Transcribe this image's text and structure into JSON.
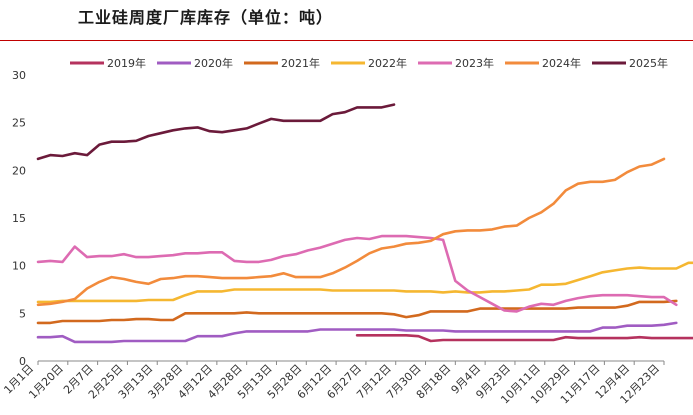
{
  "title": "工业硅周度厂库库存（单位：吨）",
  "chart_data": {
    "type": "line",
    "title": "工业硅周度厂库库存（单位：吨）",
    "ylabel": "",
    "xlabel": "",
    "ylim": [
      0,
      30
    ],
    "yticks": [
      0,
      5,
      10,
      15,
      20,
      25,
      30
    ],
    "grid": false,
    "legend": "top",
    "weeks": 52,
    "x_tick_labels": [
      "1月1日",
      "1月20日",
      "2月7日",
      "2月25日",
      "3月13日",
      "3月28日",
      "4月12日",
      "4月28日",
      "5月13日",
      "5月28日",
      "6月12日",
      "6月27日",
      "7月12日",
      "7月30日",
      "8月18日",
      "9月4日",
      "9月23日",
      "10月11日",
      "10月29日",
      "11月17日",
      "12月4日",
      "12月23日"
    ],
    "series": [
      {
        "name": "2019年",
        "color": "#b5325e",
        "start": 26,
        "values": [
          2.7,
          2.7,
          2.7,
          2.7,
          2.7,
          2.6,
          2.1,
          2.2,
          2.2,
          2.2,
          2.2,
          2.2,
          2.2,
          2.2,
          2.2,
          2.2,
          2.2,
          2.5,
          2.4,
          2.4,
          2.4,
          2.4,
          2.4,
          2.5,
          2.4,
          2.4,
          2.4,
          2.4,
          2.4,
          2.4
        ]
      },
      {
        "name": "2020年",
        "color": "#a05cc2",
        "start": 0,
        "values": [
          2.5,
          2.5,
          2.6,
          2.0,
          2.0,
          2.0,
          2.0,
          2.1,
          2.1,
          2.1,
          2.1,
          2.1,
          2.1,
          2.6,
          2.6,
          2.6,
          2.9,
          3.1,
          3.1,
          3.1,
          3.1,
          3.1,
          3.1,
          3.3,
          3.3,
          3.3,
          3.3,
          3.3,
          3.3,
          3.3,
          3.2,
          3.2,
          3.2,
          3.2,
          3.1,
          3.1,
          3.1,
          3.1,
          3.1,
          3.1,
          3.1,
          3.1,
          3.1,
          3.1,
          3.1,
          3.1,
          3.5,
          3.5,
          3.7,
          3.7,
          3.7,
          3.8,
          4.0
        ]
      },
      {
        "name": "2021年",
        "color": "#d2691e",
        "start": 0,
        "values": [
          4.0,
          4.0,
          4.2,
          4.2,
          4.2,
          4.2,
          4.3,
          4.3,
          4.4,
          4.4,
          4.3,
          4.3,
          5.0,
          5.0,
          5.0,
          5.0,
          5.0,
          5.1,
          5.0,
          5.0,
          5.0,
          5.0,
          5.0,
          5.0,
          5.0,
          5.0,
          5.0,
          5.0,
          5.0,
          4.9,
          4.6,
          4.8,
          5.2,
          5.2,
          5.2,
          5.2,
          5.5,
          5.5,
          5.5,
          5.5,
          5.5,
          5.5,
          5.5,
          5.5,
          5.6,
          5.6,
          5.6,
          5.6,
          5.8,
          6.2,
          6.2,
          6.2,
          6.3
        ]
      },
      {
        "name": "2022年",
        "color": "#f5b731",
        "start": 0,
        "values": [
          6.2,
          6.2,
          6.3,
          6.3,
          6.3,
          6.3,
          6.3,
          6.3,
          6.3,
          6.4,
          6.4,
          6.4,
          6.9,
          7.3,
          7.3,
          7.3,
          7.5,
          7.5,
          7.5,
          7.5,
          7.5,
          7.5,
          7.5,
          7.5,
          7.4,
          7.4,
          7.4,
          7.4,
          7.4,
          7.4,
          7.3,
          7.3,
          7.3,
          7.2,
          7.3,
          7.2,
          7.2,
          7.3,
          7.3,
          7.4,
          7.5,
          8.0,
          8.0,
          8.1,
          8.5,
          8.9,
          9.3,
          9.5,
          9.7,
          9.8,
          9.7,
          9.7,
          9.7,
          10.3,
          10.3
        ]
      },
      {
        "name": "2023年",
        "color": "#dd6bb2",
        "start": 0,
        "values": [
          10.4,
          10.5,
          10.4,
          12.0,
          10.9,
          11.0,
          11.0,
          11.2,
          10.9,
          10.9,
          11.0,
          11.1,
          11.3,
          11.3,
          11.4,
          11.4,
          10.5,
          10.4,
          10.4,
          10.6,
          11.0,
          11.2,
          11.6,
          11.9,
          12.3,
          12.7,
          12.9,
          12.8,
          13.1,
          13.1,
          13.1,
          13.0,
          12.9,
          12.7,
          8.4,
          7.4,
          6.7,
          6.0,
          5.3,
          5.2,
          5.7,
          6.0,
          5.9,
          6.3,
          6.6,
          6.8,
          6.9,
          6.9,
          6.9,
          6.8,
          6.7,
          6.7,
          5.9
        ]
      },
      {
        "name": "2024年",
        "color": "#f28b3c",
        "start": 0,
        "values": [
          5.9,
          6.0,
          6.2,
          6.5,
          7.6,
          8.3,
          8.8,
          8.6,
          8.3,
          8.1,
          8.6,
          8.7,
          8.9,
          8.9,
          8.8,
          8.7,
          8.7,
          8.7,
          8.8,
          8.9,
          9.2,
          8.8,
          8.8,
          8.8,
          9.2,
          9.8,
          10.5,
          11.3,
          11.8,
          12.0,
          12.3,
          12.4,
          12.6,
          13.3,
          13.6,
          13.7,
          13.7,
          13.8,
          14.1,
          14.2,
          15.0,
          15.6,
          16.5,
          17.9,
          18.6,
          18.8,
          18.8,
          19.0,
          19.8,
          20.4,
          20.6,
          21.2
        ]
      },
      {
        "name": "2025年",
        "color": "#6b1a3a",
        "start": 0,
        "values": [
          21.2,
          21.6,
          21.5,
          21.8,
          21.6,
          22.7,
          23.0,
          23.0,
          23.1,
          23.6,
          23.9,
          24.2,
          24.4,
          24.5,
          24.1,
          24.0,
          24.2,
          24.4,
          24.9,
          25.4,
          25.2,
          25.2,
          25.2,
          25.2,
          25.9,
          26.1,
          26.6,
          26.6,
          26.6,
          26.9
        ]
      }
    ]
  }
}
